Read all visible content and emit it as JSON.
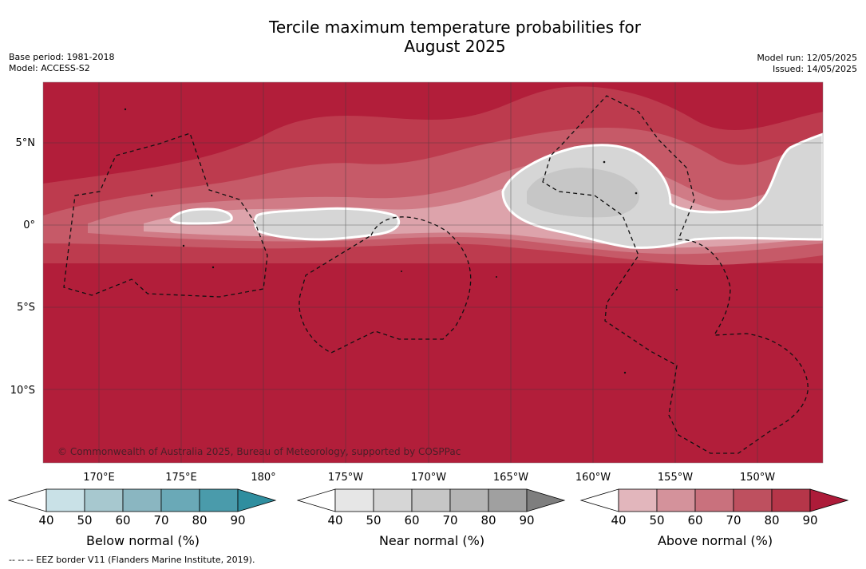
{
  "title_line1": "Tercile maximum temperature probabilities for",
  "title_line2": "August 2025",
  "base_period": "Base period: 1981-2018",
  "model": "Model: ACCESS-S2",
  "model_run": "Model run: 12/05/2025",
  "issued": "Issued: 14/05/2025",
  "copyright": "© Commonwealth of Australia 2025, Bureau of Meteorology, supported by COSPPac",
  "lat_labels": [
    "5°N",
    "0°",
    "5°S",
    "10°S"
  ],
  "lon_labels": [
    "170°E",
    "175°E",
    "180°",
    "175°W",
    "170°W",
    "165°W",
    "160°W",
    "155°W",
    "150°W"
  ],
  "colorbars": [
    {
      "label": "Below normal (%)",
      "ticks": [
        "40",
        "50",
        "60",
        "70",
        "80",
        "90"
      ],
      "colors": [
        "#ffffff",
        "#c9e1e7",
        "#a7c8cf",
        "#8ab6c1",
        "#6aa9b7",
        "#4a9bab",
        "#2f8e9f"
      ]
    },
    {
      "label": "Near normal (%)",
      "ticks": [
        "40",
        "50",
        "60",
        "70",
        "80",
        "90"
      ],
      "colors": [
        "#ffffff",
        "#e6e6e6",
        "#d6d6d6",
        "#c6c6c6",
        "#b4b4b4",
        "#a0a0a0",
        "#7e7e7e"
      ]
    },
    {
      "label": "Above normal (%)",
      "ticks": [
        "40",
        "50",
        "60",
        "70",
        "80",
        "90"
      ],
      "colors": [
        "#ffffff",
        "#e2b6bc",
        "#d4929b",
        "#c9717d",
        "#be505f",
        "#b63649",
        "#ad1b39"
      ]
    }
  ],
  "footnote": "--  --  -- EEZ border V11 (Flanders Marine Institute, 2019).",
  "map_colors": {
    "dominant_above": "#b21e3a",
    "above_80": "#bd3b4e",
    "above_70": "#c65a68",
    "above_60": "#d07b86",
    "above_50": "#dda3ab",
    "near_normal": "#d6d6d6",
    "near_normal_darker": "#c6c6c6"
  }
}
